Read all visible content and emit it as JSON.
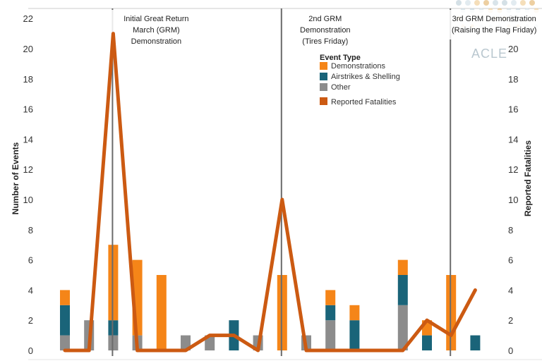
{
  "chart_data": {
    "type": "bar",
    "stacked": true,
    "dual_axis": true,
    "ylabel_left": "Number of Events",
    "ylabel_right": "Reported Fatalities",
    "ylim": [
      0,
      23
    ],
    "ylim_right": [
      0,
      23
    ],
    "y_ticks": [
      0,
      2,
      4,
      6,
      8,
      10,
      12,
      14,
      16,
      18,
      20,
      22
    ],
    "grid": false,
    "legend": {
      "title": "Event Type",
      "position": "upper-right",
      "items": [
        "Demonstrations",
        "Airstrikes & Shelling",
        "Other",
        "Reported Fatalities"
      ]
    },
    "series": [
      {
        "name": "Other",
        "color": "#8c8c8c",
        "values": [
          1,
          2,
          1,
          1,
          0,
          1,
          1,
          0,
          1,
          0,
          1,
          2,
          0,
          0,
          3,
          0,
          0,
          0
        ]
      },
      {
        "name": "Airstrikes & Shelling",
        "color": "#1a6479",
        "values": [
          2,
          0,
          1,
          0,
          0,
          0,
          0,
          2,
          0,
          0,
          0,
          1,
          2,
          0,
          2,
          1,
          0,
          1
        ]
      },
      {
        "name": "Demonstrations",
        "color": "#f58518",
        "values": [
          1,
          0,
          5,
          5,
          5,
          0,
          0,
          0,
          0,
          5,
          0,
          1,
          1,
          0,
          1,
          1,
          5,
          0
        ]
      }
    ],
    "line": {
      "name": "Reported Fatalities",
      "color": "#cc5a12",
      "axis": "right",
      "values": [
        0,
        0,
        21,
        0,
        0,
        0,
        1,
        1,
        0,
        10,
        0,
        0,
        0,
        0,
        0,
        2,
        1,
        4
      ]
    },
    "annotations": [
      {
        "text": [
          "Initial Great Return",
          "March (GRM)",
          "Demonstration"
        ],
        "at_index": 2
      },
      {
        "text": [
          "2nd GRM",
          "Demonstration",
          "(Tires Friday)"
        ],
        "at_index": 9
      },
      {
        "text": [
          "3rd GRM Demonstration",
          "(Raising the Flag Friday)"
        ],
        "at_index": 16
      }
    ]
  },
  "logo": {
    "text": "ACLED",
    "visible_text": "ACLE"
  }
}
